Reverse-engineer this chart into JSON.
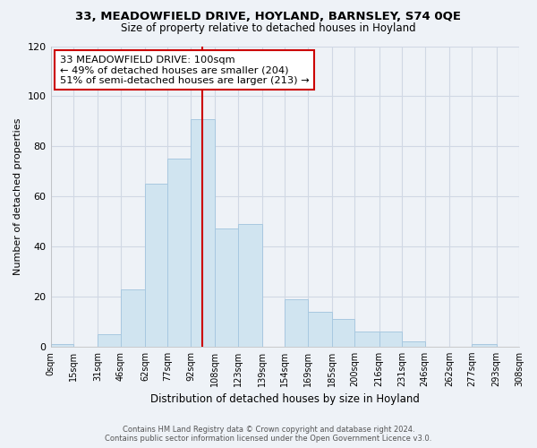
{
  "title": "33, MEADOWFIELD DRIVE, HOYLAND, BARNSLEY, S74 0QE",
  "subtitle": "Size of property relative to detached houses in Hoyland",
  "xlabel": "Distribution of detached houses by size in Hoyland",
  "ylabel": "Number of detached properties",
  "bar_color": "#d0e4f0",
  "bar_edge_color": "#a8c8e0",
  "bin_edges": [
    0,
    15,
    31,
    46,
    62,
    77,
    92,
    108,
    123,
    139,
    154,
    169,
    185,
    200,
    216,
    231,
    246,
    262,
    277,
    293,
    308
  ],
  "bin_labels": [
    "0sqm",
    "15sqm",
    "31sqm",
    "46sqm",
    "62sqm",
    "77sqm",
    "92sqm",
    "108sqm",
    "123sqm",
    "139sqm",
    "154sqm",
    "169sqm",
    "185sqm",
    "200sqm",
    "216sqm",
    "231sqm",
    "246sqm",
    "262sqm",
    "277sqm",
    "293sqm",
    "308sqm"
  ],
  "counts": [
    1,
    0,
    5,
    23,
    65,
    75,
    91,
    47,
    49,
    0,
    19,
    14,
    11,
    6,
    6,
    2,
    0,
    0,
    1,
    0
  ],
  "vline_x": 100,
  "vline_color": "#cc0000",
  "annotation_title": "33 MEADOWFIELD DRIVE: 100sqm",
  "annotation_line1": "← 49% of detached houses are smaller (204)",
  "annotation_line2": "51% of semi-detached houses are larger (213) →",
  "annotation_box_color": "#ffffff",
  "annotation_box_edge": "#cc0000",
  "ylim": [
    0,
    120
  ],
  "yticks": [
    0,
    20,
    40,
    60,
    80,
    100,
    120
  ],
  "footer1": "Contains HM Land Registry data © Crown copyright and database right 2024.",
  "footer2": "Contains public sector information licensed under the Open Government Licence v3.0.",
  "background_color": "#eef2f7",
  "grid_color": "#d0d8e4"
}
